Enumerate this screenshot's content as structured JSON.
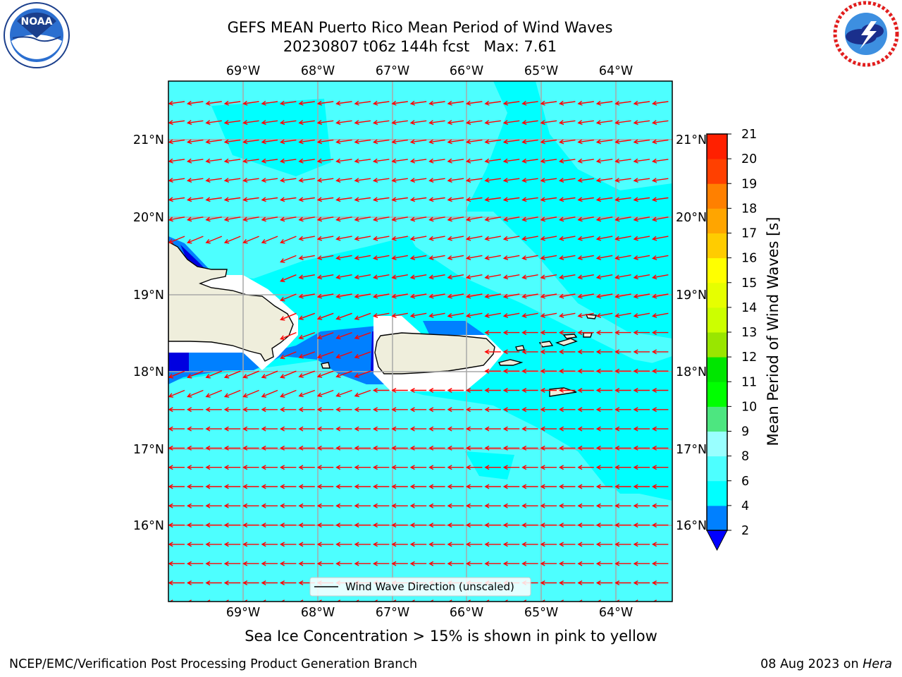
{
  "header": {
    "title_line1": "GEFS MEAN Puerto Rico Mean Period of Wind Waves",
    "title_line2": "20230807 t06z 144h fcst   Max: 7.61"
  },
  "logos": {
    "left": {
      "icon": "noaa-logo-icon",
      "text": "NOAA"
    },
    "right": {
      "icon": "nws-logo-icon"
    }
  },
  "map": {
    "lon_labels": [
      "69°W",
      "68°W",
      "67°W",
      "66°W",
      "65°W",
      "64°W"
    ],
    "lat_labels": [
      "21°N",
      "20°N",
      "19°N",
      "18°N",
      "17°N",
      "16°N"
    ],
    "legend_label": "Wind Wave Direction (unscaled)",
    "colors": {
      "ocean_cyan": "#00ffff",
      "ocean_light": "#4dffff",
      "shallow_blue": "#0080ff",
      "deep_blue": "#0000e0",
      "land": "#efeedc",
      "arrow": "#ff0000"
    }
  },
  "colorbar": {
    "label": "Mean Period of Wind Waves [s]",
    "ticks": [
      "2",
      "4",
      "6",
      "8",
      "9",
      "10",
      "11",
      "12",
      "13",
      "14",
      "15",
      "16",
      "17",
      "18",
      "19",
      "20",
      "21"
    ],
    "colors": [
      "#0000ff",
      "#0080ff",
      "#00ffff",
      "#4dffff",
      "#99ffff",
      "#4de680",
      "#00ff00",
      "#00e600",
      "#99e600",
      "#ccff00",
      "#e6ff00",
      "#ffff00",
      "#ffcc00",
      "#ffa500",
      "#ff8000",
      "#ff4000",
      "#ff2000",
      "#ff0000"
    ]
  },
  "footer": {
    "subtitle": "Sea Ice Concentration > 15% is shown in pink to yellow",
    "left": "NCEP/EMC/Verification Post Processing Product Generation Branch",
    "right_prefix": "08 Aug 2023 on ",
    "right_host": "Hera"
  }
}
